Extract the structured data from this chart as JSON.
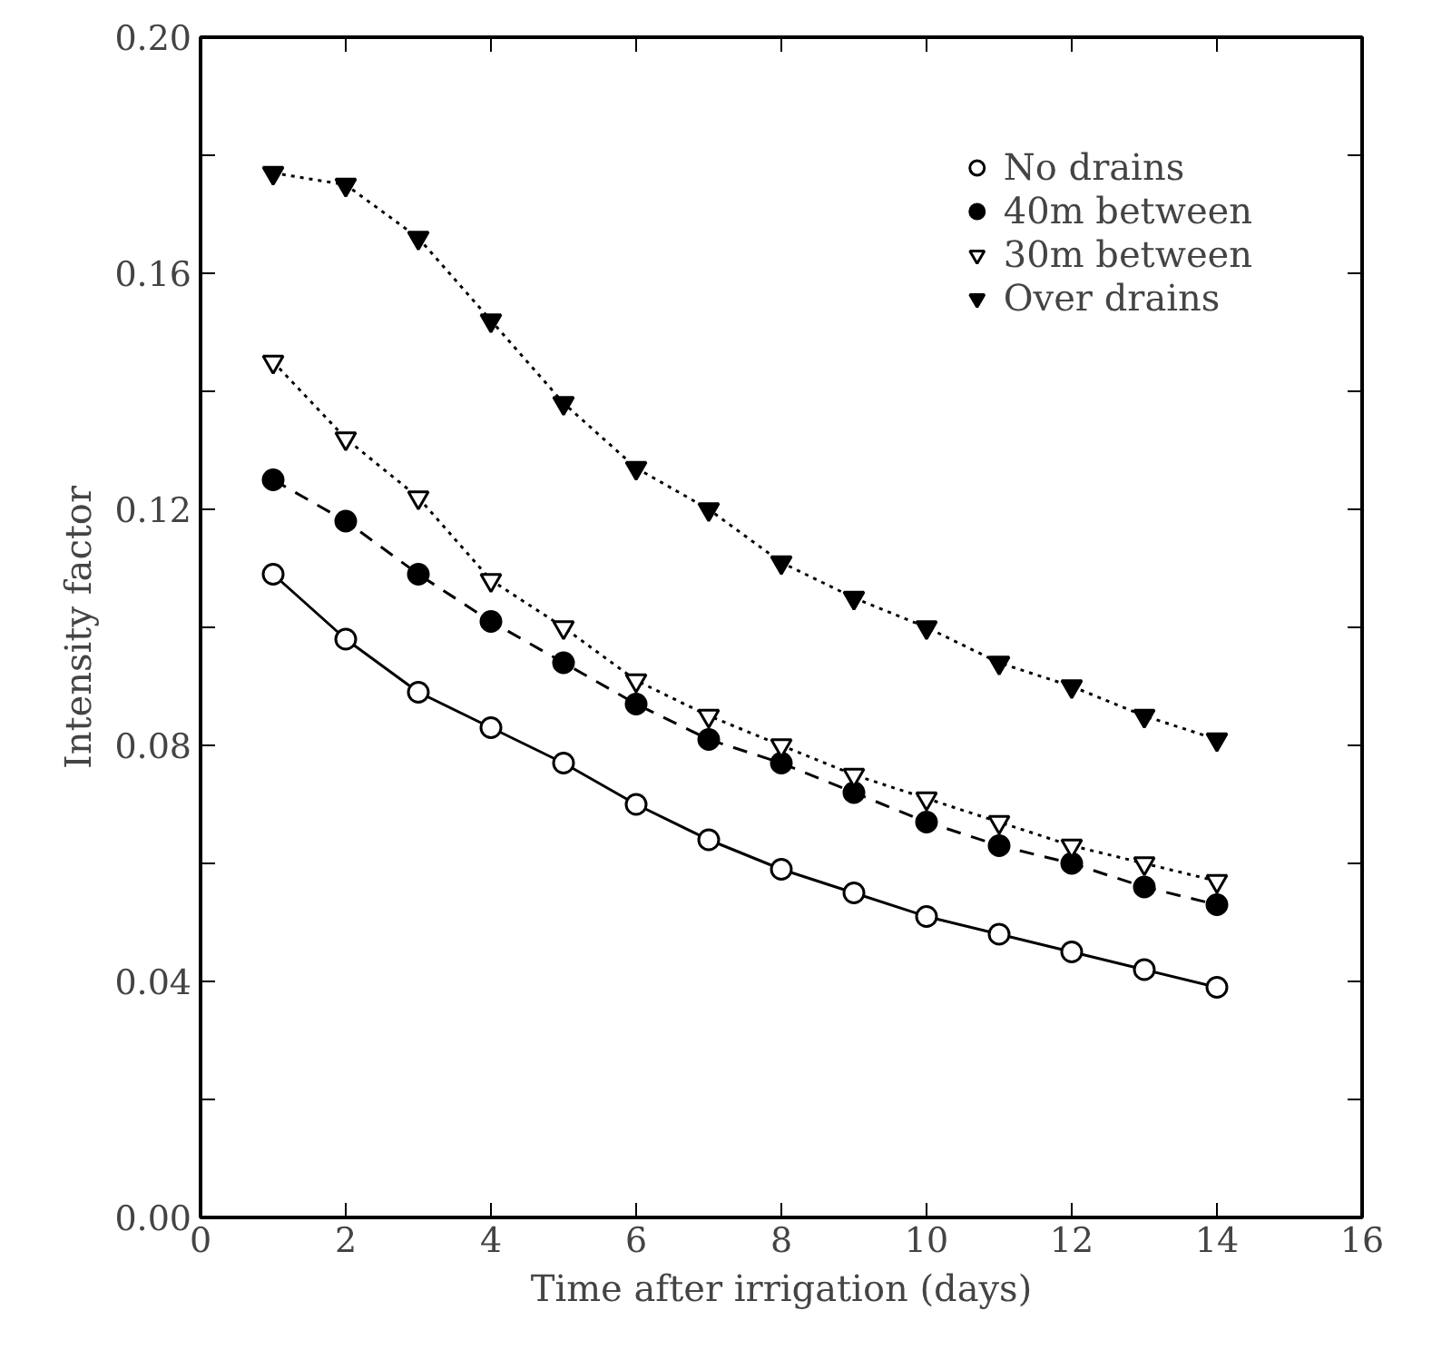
{
  "chart_data": {
    "type": "line",
    "xlabel": "Time after irrigation (days)",
    "ylabel": "Intensity factor",
    "x": [
      1,
      2,
      3,
      4,
      5,
      6,
      7,
      8,
      9,
      10,
      11,
      12,
      13,
      14
    ],
    "series": [
      {
        "name": "No drains",
        "color": "#000000",
        "marker": "circle",
        "line_style": "solid",
        "values": [
          0.109,
          0.098,
          0.089,
          0.083,
          0.077,
          0.07,
          0.064,
          0.059,
          0.055,
          0.051,
          0.048,
          0.045,
          0.042,
          0.039
        ]
      },
      {
        "name": "40m between",
        "color": "#000000",
        "marker": "circle",
        "line_style": "dashed",
        "values": [
          0.125,
          0.118,
          0.109,
          0.101,
          0.094,
          0.087,
          0.081,
          0.077,
          0.072,
          0.067,
          0.063,
          0.06,
          0.056,
          0.053
        ]
      },
      {
        "name": "30m between",
        "color": "#000000",
        "marker": "triangle",
        "line_style": "dotted",
        "values": [
          0.145,
          0.132,
          0.122,
          0.108,
          0.1,
          0.091,
          0.085,
          0.08,
          0.075,
          0.071,
          0.067,
          0.063,
          0.06,
          0.057
        ]
      },
      {
        "name": "Over drains",
        "color": "#000000",
        "marker": "triangle",
        "line_style": "dotted",
        "values": [
          0.177,
          0.175,
          0.166,
          0.152,
          0.138,
          0.127,
          0.12,
          0.111,
          0.105,
          0.1,
          0.094,
          0.09,
          0.085,
          0.081
        ]
      }
    ],
    "xlim": [
      0,
      16
    ],
    "xticks": [
      0,
      2,
      4,
      6,
      8,
      10,
      12,
      14,
      16
    ],
    "ylim": [
      0,
      0.2
    ],
    "yticks": [
      {
        "value": 0,
        "label": "0.00"
      },
      {
        "value": 0.02,
        "label": null
      },
      {
        "value": 0.04,
        "label": "0.04"
      },
      {
        "value": 0.06,
        "label": null
      },
      {
        "value": 0.08,
        "label": "0.08"
      },
      {
        "value": 0.1,
        "label": null
      },
      {
        "value": 0.12,
        "label": "0.12"
      },
      {
        "value": 0.14,
        "label": null
      },
      {
        "value": 0.16,
        "label": "0.16"
      },
      {
        "value": 0.18,
        "label": null
      },
      {
        "value": 0.2,
        "label": "0.20"
      }
    ],
    "grid": false,
    "legend": "top right"
  }
}
